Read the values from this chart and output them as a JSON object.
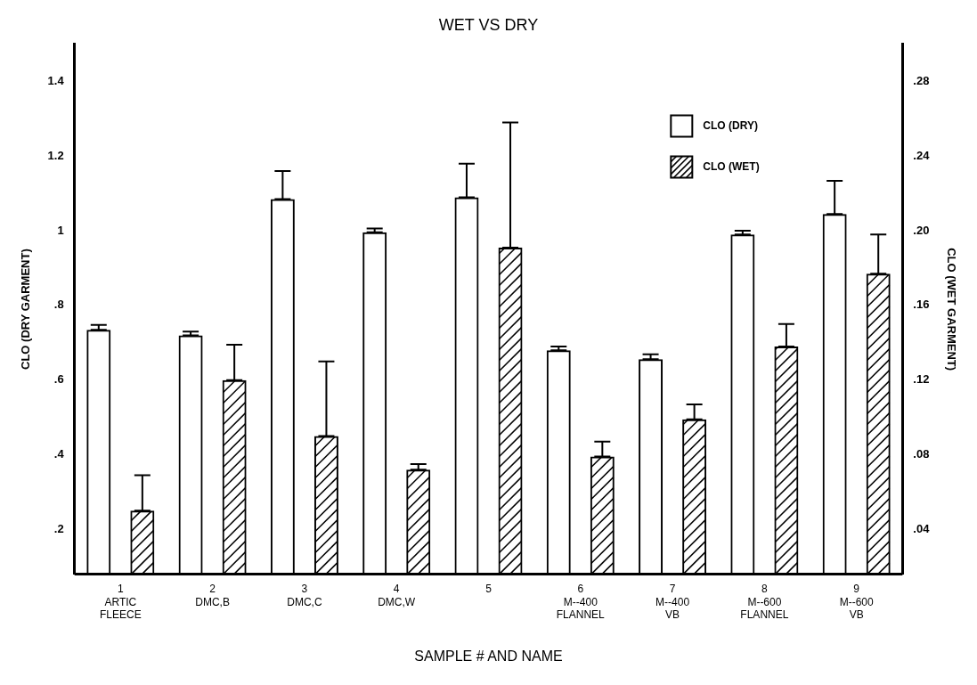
{
  "chart_data": {
    "type": "bar",
    "title": "WET VS DRY",
    "xlabel": "SAMPLE # AND NAME",
    "ylabel": "CLO (DRY GARMENT)",
    "y2label": "CLO (WET GARMENT)",
    "categories": [
      "1\nARTIC\nFLEECE",
      "2\nDMC,B",
      "3\nDMC,C",
      "4\nDMC,W",
      "5",
      "6\nM--400\nFLANNEL",
      "7\nM--400\nVB",
      "8\nM--600\nFLANNEL",
      "9\nM--600\nVB"
    ],
    "series": [
      {
        "name": "CLO (DRY)",
        "color": "#000000",
        "values": [
          0.735,
          0.72,
          1.085,
          0.996,
          1.09,
          0.68,
          0.656,
          0.99,
          1.045
        ],
        "errors": [
          [
            0.735,
            0.748
          ],
          [
            0.72,
            0.73
          ],
          [
            1.085,
            1.16
          ],
          [
            0.996,
            1.006
          ],
          [
            1.09,
            1.18
          ],
          [
            0.68,
            0.69
          ],
          [
            0.656,
            0.669
          ],
          [
            0.99,
            1.0
          ],
          [
            1.045,
            1.134
          ]
        ]
      },
      {
        "name": "CLO (WET)",
        "color": "#000000",
        "axis": "y2",
        "values": [
          0.05,
          0.12,
          0.09,
          0.072,
          0.191,
          0.079,
          0.099,
          0.138,
          0.177
        ],
        "errors": [
          [
            0.05,
            0.069
          ],
          [
            0.12,
            0.139
          ],
          [
            0.09,
            0.13
          ],
          [
            0.072,
            0.075
          ],
          [
            0.191,
            0.258
          ],
          [
            0.079,
            0.087
          ],
          [
            0.099,
            0.107
          ],
          [
            0.138,
            0.15
          ],
          [
            0.177,
            0.198
          ]
        ]
      }
    ],
    "ylim": [
      0.08,
      1.5
    ],
    "yticks": [
      {
        "value": 0.2,
        "label": ".2"
      },
      {
        "value": 0.4,
        "label": ".4"
      },
      {
        "value": 0.6,
        "label": ".6"
      },
      {
        "value": 0.8,
        "label": ".8"
      },
      1,
      {
        "value": 1.2,
        "label": "1.2"
      },
      {
        "value": 1.4,
        "label": "1.4"
      }
    ],
    "y2lim": [
      0.016,
      0.3
    ],
    "y2ticks": [
      {
        "value": 0.04,
        "label": ".04"
      },
      {
        "value": 0.08,
        "label": ".08"
      },
      {
        "value": 0.12,
        "label": ".12"
      },
      {
        "value": 0.16,
        "label": ".16"
      },
      {
        "value": 0.2,
        "label": ".20"
      },
      {
        "value": 0.24,
        "label": ".24"
      },
      {
        "value": 0.28,
        "label": ".28"
      }
    ],
    "legend": "top right",
    "grid": false
  }
}
